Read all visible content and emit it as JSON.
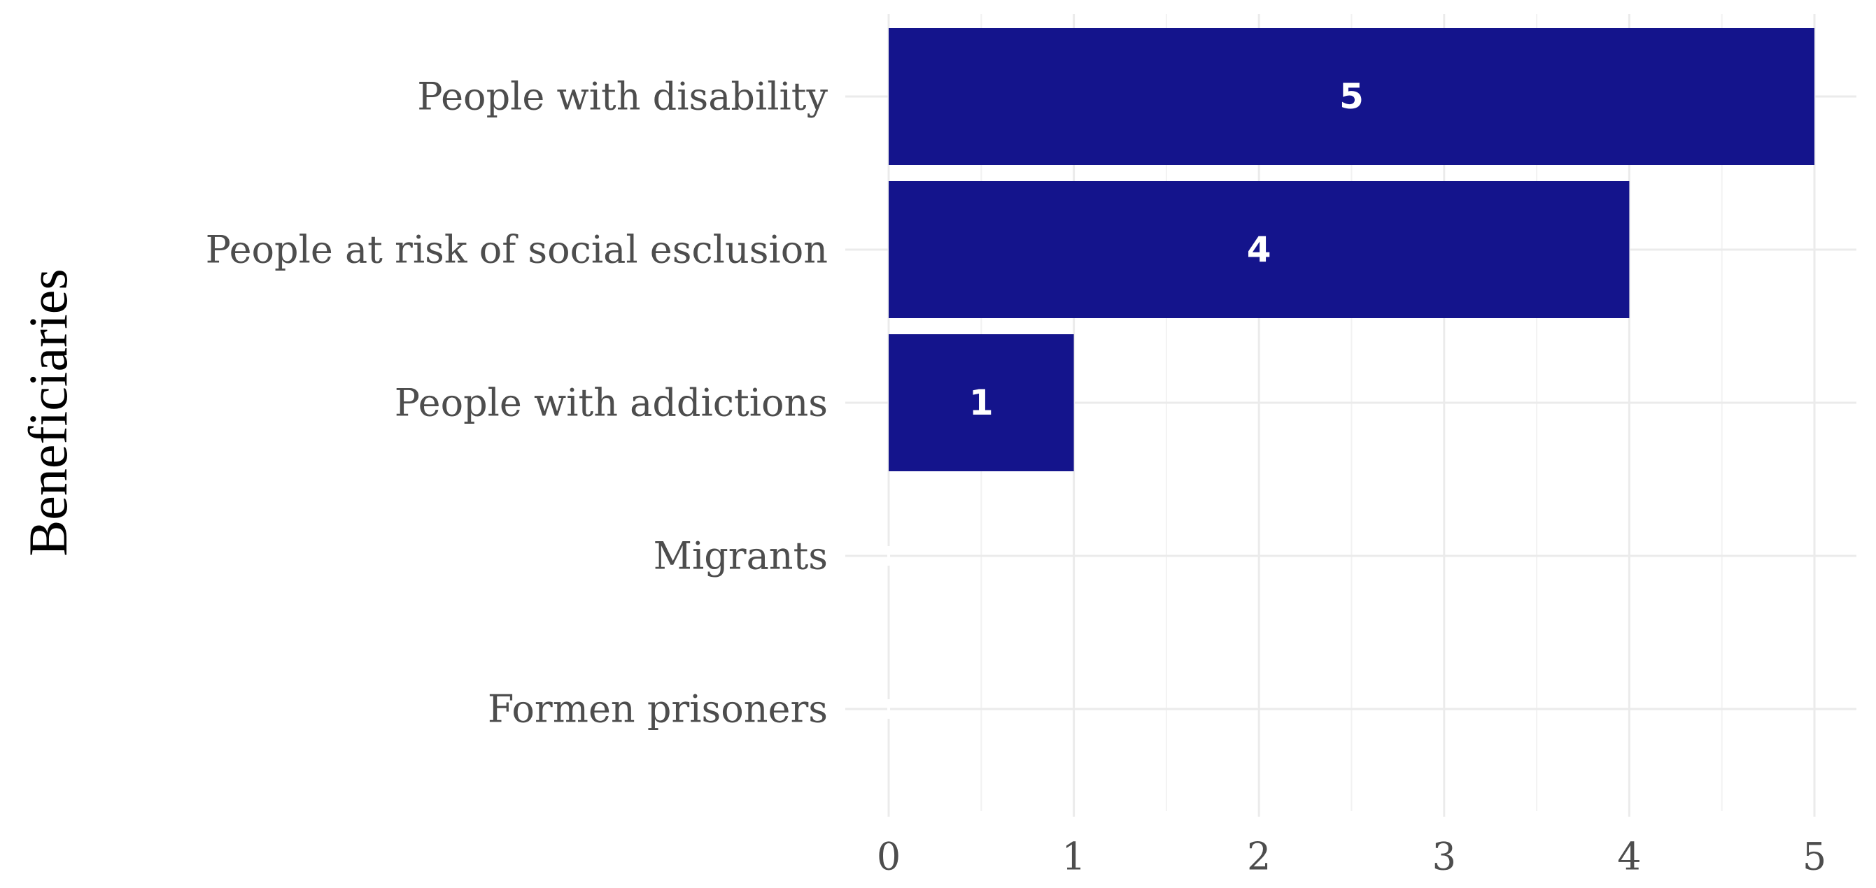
{
  "chart_data": {
    "type": "bar",
    "orientation": "horizontal",
    "title": "",
    "xlabel": "",
    "ylabel": "Beneficiaries",
    "categories": [
      "People with disability",
      "People at risk of social esclusion",
      "People with addictions",
      "Migrants",
      "Formen prisoners"
    ],
    "values": [
      5,
      4,
      1,
      0,
      0
    ],
    "value_labels": [
      "5",
      "4",
      "1",
      "",
      ""
    ],
    "xlim": [
      0,
      5
    ],
    "x_ticks": [
      0,
      1,
      2,
      3,
      4,
      5
    ],
    "x_tick_labels": [
      "0",
      "1",
      "2",
      "3",
      "4",
      "5"
    ],
    "grid": true,
    "bar_color": "#14148c"
  }
}
